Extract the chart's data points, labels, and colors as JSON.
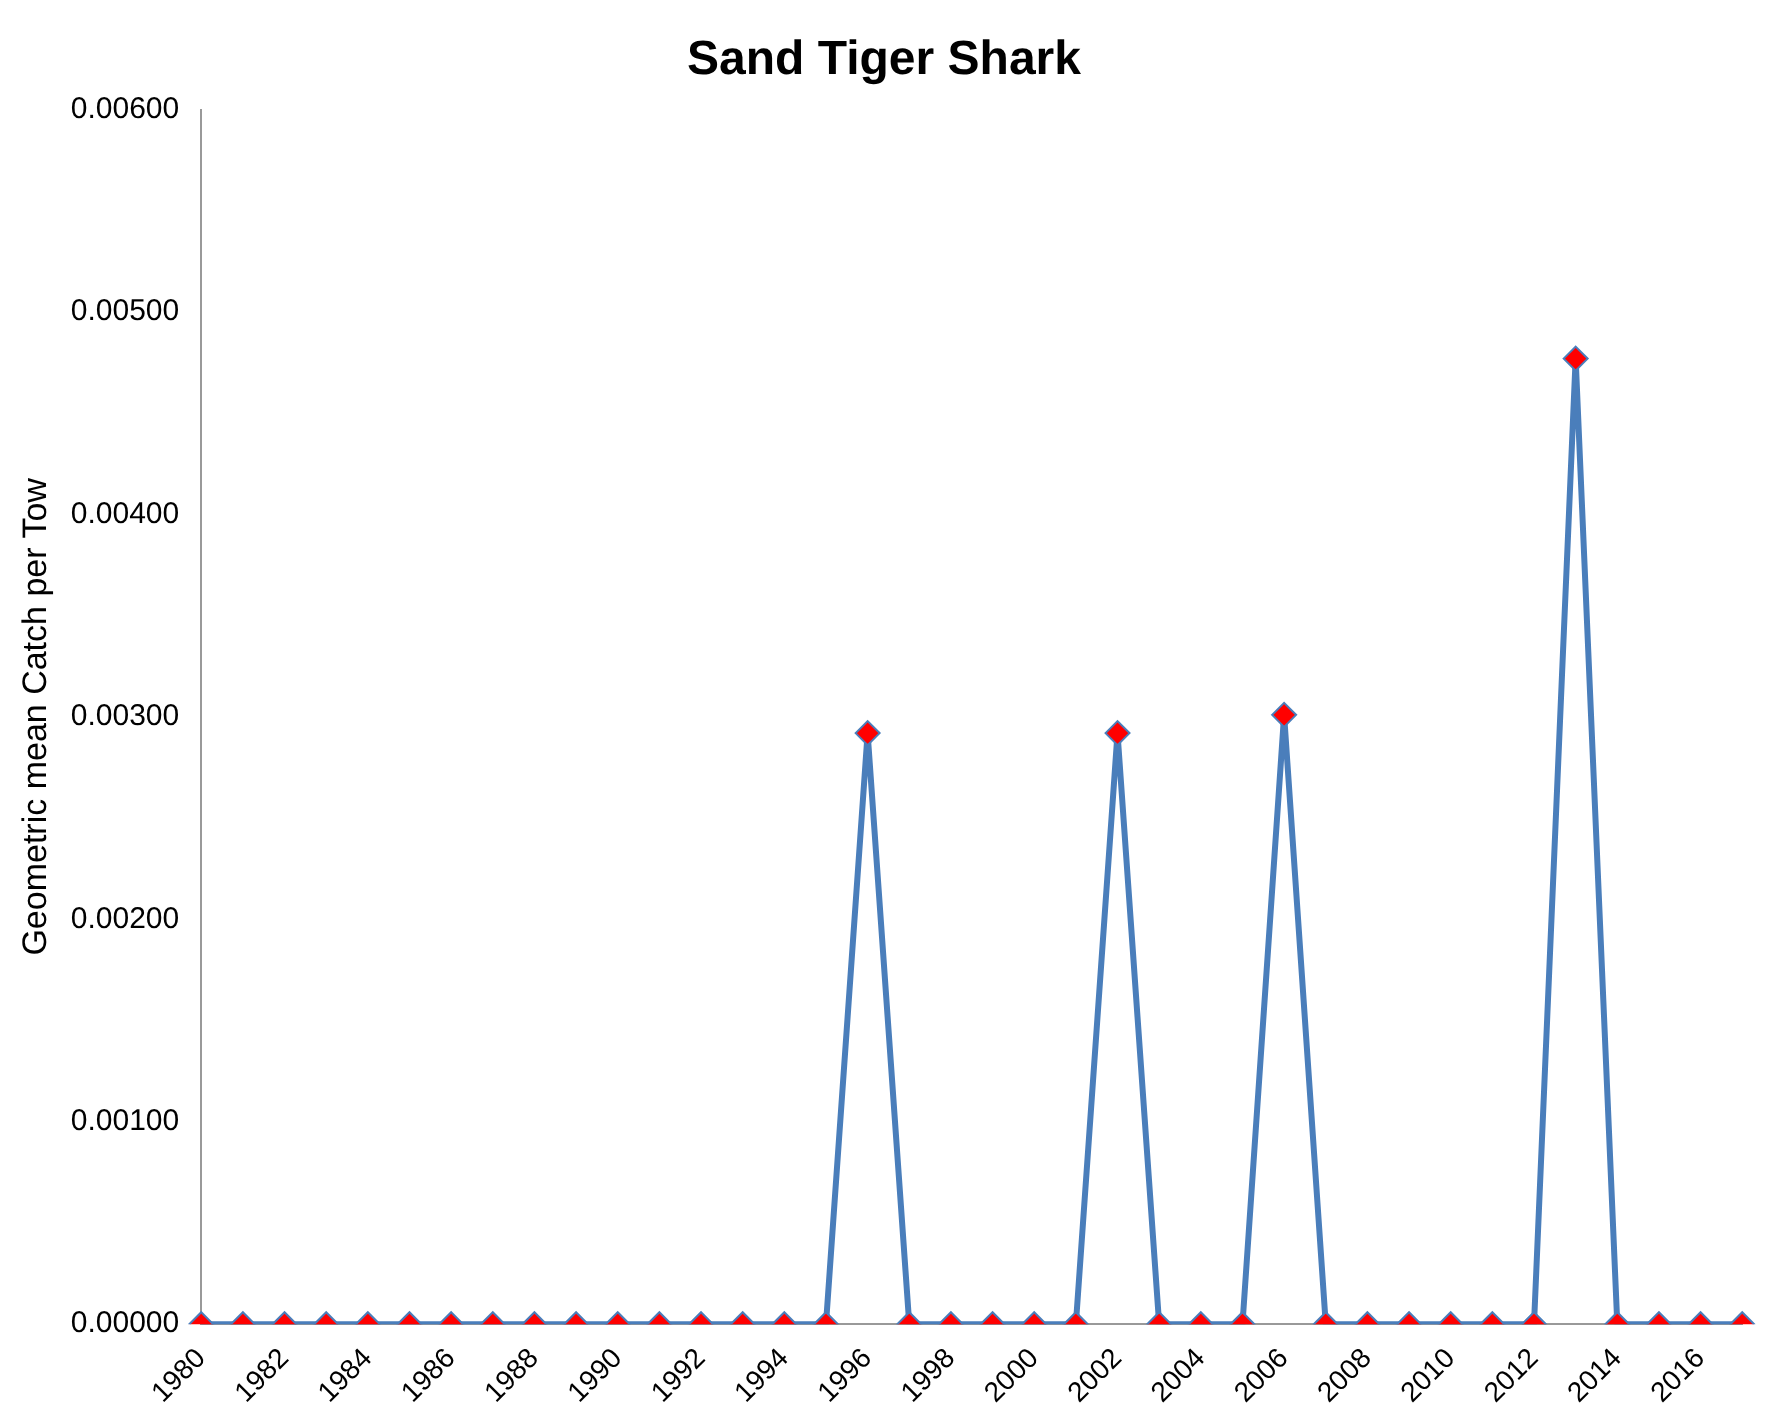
{
  "chart_data": {
    "type": "line",
    "title": "Sand Tiger Shark",
    "ylabel": "Geometric mean Catch per Tow",
    "categories": [
      "1980",
      null,
      "1982",
      null,
      "1984",
      null,
      "1986",
      null,
      "1988",
      null,
      "1990",
      null,
      "1992",
      null,
      "1994",
      null,
      "1996",
      null,
      "1998",
      null,
      "2000",
      null,
      "2002",
      null,
      "2004",
      null,
      "2006",
      null,
      "2008",
      null,
      "2010",
      null,
      "2012",
      null,
      "2014",
      null,
      "2016",
      null
    ],
    "series": [
      {
        "color": "#4a7ebb",
        "values": [
          0,
          0,
          0,
          0,
          0,
          0,
          0,
          0,
          0,
          0,
          0,
          0,
          0,
          0,
          0,
          0,
          0.00292,
          0,
          0,
          0,
          0,
          0,
          0.00292,
          0,
          0,
          0,
          0.00301,
          0,
          0,
          0,
          0,
          0,
          0,
          0.00477,
          0,
          0,
          0,
          0
        ]
      }
    ],
    "ylim": [
      0,
      0.006
    ],
    "yticks": [
      {
        "value": 0,
        "label": "0.00000"
      },
      {
        "value": 0.001,
        "label": "0.00100"
      },
      {
        "value": 0.002,
        "label": "0.00200"
      },
      {
        "value": 0.003,
        "label": "0.00300"
      },
      {
        "value": 0.004,
        "label": "0.00400"
      },
      {
        "value": 0.005,
        "label": "0.00500"
      },
      {
        "value": 0.006,
        "label": "0.00600"
      }
    ],
    "grid": false,
    "legend": false,
    "marker": "diamond",
    "line_style": "solid"
  }
}
